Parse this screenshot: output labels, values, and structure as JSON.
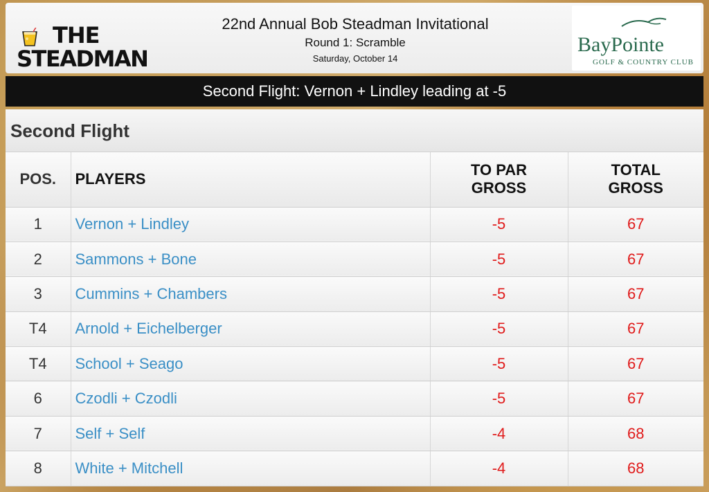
{
  "header": {
    "logo_left": {
      "line1": "THE",
      "line2": "STEADMAN"
    },
    "title": "22nd Annual Bob Steadman Invitational",
    "subtitle": "Round 1: Scramble",
    "date": "Saturday, October 14",
    "logo_right": {
      "name": "BayPointe",
      "tagline": "GOLF & COUNTRY CLUB"
    }
  },
  "banner": "Second Flight: Vernon + Lindley leading at -5",
  "flight_title": "Second Flight",
  "columns": {
    "pos": "POS.",
    "players": "PLAYERS",
    "to_par_1": "TO PAR",
    "to_par_2": "GROSS",
    "total_1": "TOTAL",
    "total_2": "GROSS"
  },
  "rows": [
    {
      "pos": "1",
      "players": "Vernon + Lindley",
      "to_par": "-5",
      "total": "67"
    },
    {
      "pos": "2",
      "players": "Sammons + Bone",
      "to_par": "-5",
      "total": "67"
    },
    {
      "pos": "3",
      "players": "Cummins + Chambers",
      "to_par": "-5",
      "total": "67"
    },
    {
      "pos": "T4",
      "players": "Arnold + Eichelberger",
      "to_par": "-5",
      "total": "67"
    },
    {
      "pos": "T4",
      "players": "School + Seago",
      "to_par": "-5",
      "total": "67"
    },
    {
      "pos": "6",
      "players": "Czodli + Czodli",
      "to_par": "-5",
      "total": "67"
    },
    {
      "pos": "7",
      "players": "Self + Self",
      "to_par": "-4",
      "total": "68"
    },
    {
      "pos": "8",
      "players": "White + Mitchell",
      "to_par": "-4",
      "total": "68"
    }
  ],
  "colors": {
    "player_link": "#3a8fc6",
    "score": "#e01a1a",
    "banner_bg": "#111111",
    "brand_green": "#2a6a4e"
  },
  "icons": {
    "left_logo": "cocktail-glass-icon",
    "right_logo": "bird-icon"
  }
}
